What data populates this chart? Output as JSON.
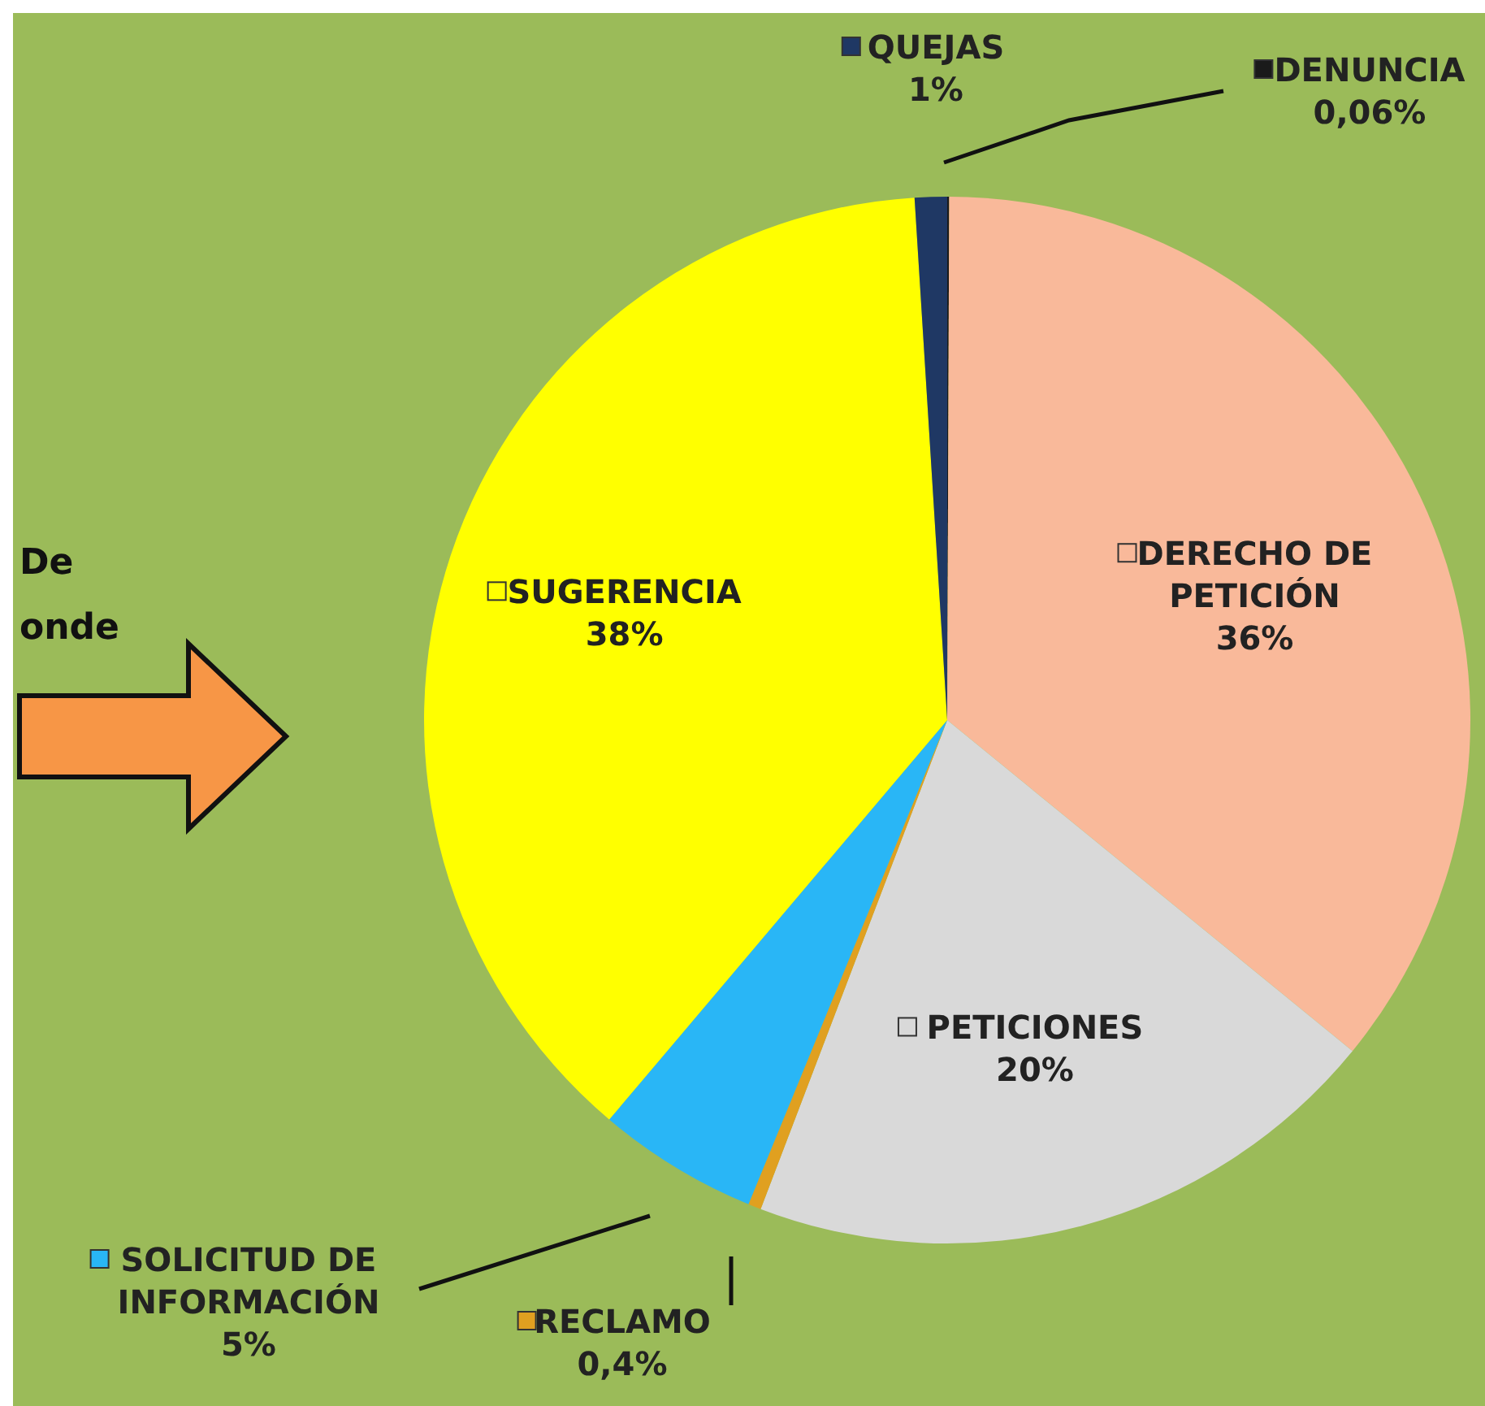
{
  "chart_data": {
    "type": "pie",
    "categories": [
      "DENUNCIA",
      "DERECHO DE PETICIÓN",
      "PETICIONES",
      "RECLAMO",
      "SOLICITUD DE INFORMACIÓN",
      "SUGERENCIA",
      "QUEJAS"
    ],
    "values": [
      0.06,
      36,
      20,
      0.4,
      5,
      38,
      1
    ],
    "value_labels": [
      "0,06%",
      "36%",
      "20%",
      "0,4%",
      "5%",
      "38%",
      "1%"
    ],
    "colors": [
      "#1a1a1a",
      "#f9b99a",
      "#d9d9d9",
      "#e0a020",
      "#29b6f6",
      "#ffff00",
      "#1f3864"
    ],
    "annotations": [
      "De",
      "onde"
    ],
    "legend": "top left"
  }
}
